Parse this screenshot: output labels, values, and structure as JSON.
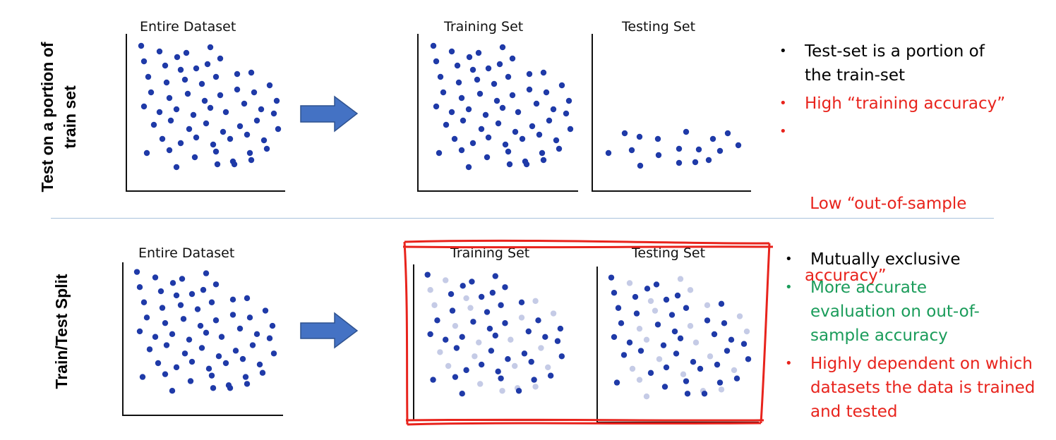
{
  "colors": {
    "point": "#1f3aa8",
    "point_light": "#c5cbe6",
    "arrow": "#4472c4",
    "highlight_box": "#e8231c",
    "text_red": "#e8231c",
    "text_green": "#1a9c5a",
    "text_black": "#000000"
  },
  "top_row": {
    "label": "Test on a portion of train set",
    "label_lines": [
      "Test on a portion of",
      "train set"
    ],
    "entire_title": "Entire Dataset",
    "training_title": "Training Set",
    "testing_title": "Testing Set",
    "bullets": [
      {
        "text": "Test-set is a portion of the train-set",
        "lines": [
          "Test-set is a portion of",
          "the train-set"
        ],
        "color": "#000000"
      },
      {
        "text": "High “training accuracy”",
        "lines": [
          "High “training accuracy”"
        ],
        "color": "#e8231c"
      },
      {
        "text": "Low “out-of-sample accuracy”",
        "lines": [
          " Low “out-of-sample",
          "accuracy”"
        ],
        "color": "#e8231c"
      }
    ]
  },
  "bottom_row": {
    "label": "Train/Test Split",
    "entire_title": "Entire Dataset",
    "training_title": "Training Set",
    "testing_title": "Testing Set",
    "bullets": [
      {
        "text": "Mutually exclusive",
        "lines": [
          "Mutually exclusive"
        ],
        "color": "#000000"
      },
      {
        "text": "More accurate evaluation on out-of-sample accuracy",
        "lines": [
          "More accurate",
          "evaluation on out-of-",
          "sample accuracy"
        ],
        "color": "#1a9c5a"
      },
      {
        "text": "Highly dependent on which datasets the data is trained and tested",
        "lines": [
          "Highly dependent on which",
          "datasets the data is trained",
          "and tested"
        ],
        "color": "#e8231c"
      }
    ]
  }
}
